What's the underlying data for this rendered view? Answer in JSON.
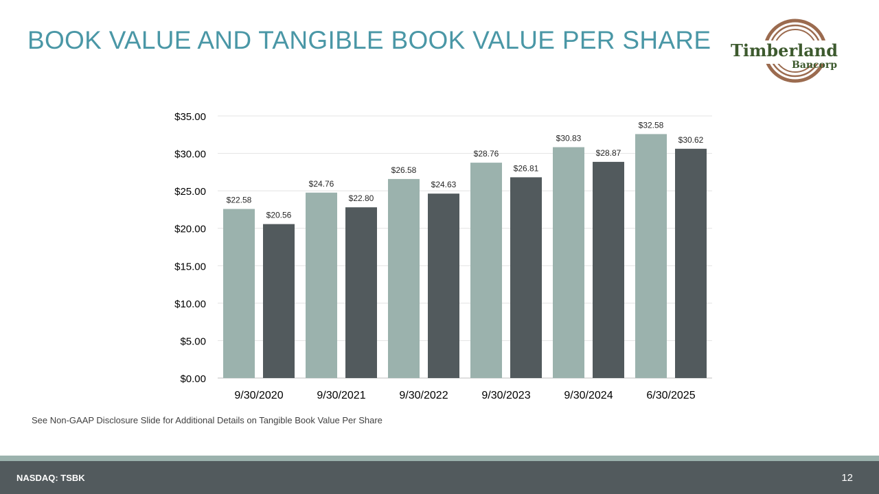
{
  "slide": {
    "title": "BOOK VALUE AND TANGIBLE BOOK VALUE PER SHARE",
    "footnote": "See Non-GAAP Disclosure Slide for Additional Details on Tangible Book Value Per Share",
    "ticker": "NASDAQ: TSBK",
    "page_number": "12"
  },
  "logo": {
    "name": "Timberland",
    "sub": "Bancorp",
    "text_color": "#3d5a2e",
    "ring_color": "#9b6b4f"
  },
  "colors": {
    "title": "#4a97a6",
    "series_light": "#9bb2ad",
    "series_dark": "#525a5d",
    "band_light": "#9bb2ad",
    "band_dark": "#525a5d"
  },
  "chart_data": {
    "type": "bar",
    "categories": [
      "9/30/2020",
      "9/30/2021",
      "9/30/2022",
      "9/30/2023",
      "9/30/2024",
      "6/30/2025"
    ],
    "series": [
      {
        "values": [
          22.58,
          24.76,
          26.58,
          28.76,
          30.83,
          32.58
        ],
        "labels": [
          "$22.58",
          "$24.76",
          "$26.58",
          "$28.76",
          "$30.83",
          "$32.58"
        ],
        "color": "#9bb2ad"
      },
      {
        "values": [
          20.56,
          22.8,
          24.63,
          26.81,
          28.87,
          30.62
        ],
        "labels": [
          "$20.56",
          "$22.80",
          "$24.63",
          "$26.81",
          "$28.87",
          "$30.62"
        ],
        "color": "#525a5d"
      }
    ],
    "ylim": [
      0,
      35
    ],
    "yticks": [
      "$0.00",
      "$5.00",
      "$10.00",
      "$15.00",
      "$20.00",
      "$25.00",
      "$30.00",
      "$35.00"
    ],
    "grid": true,
    "legend": "none"
  }
}
